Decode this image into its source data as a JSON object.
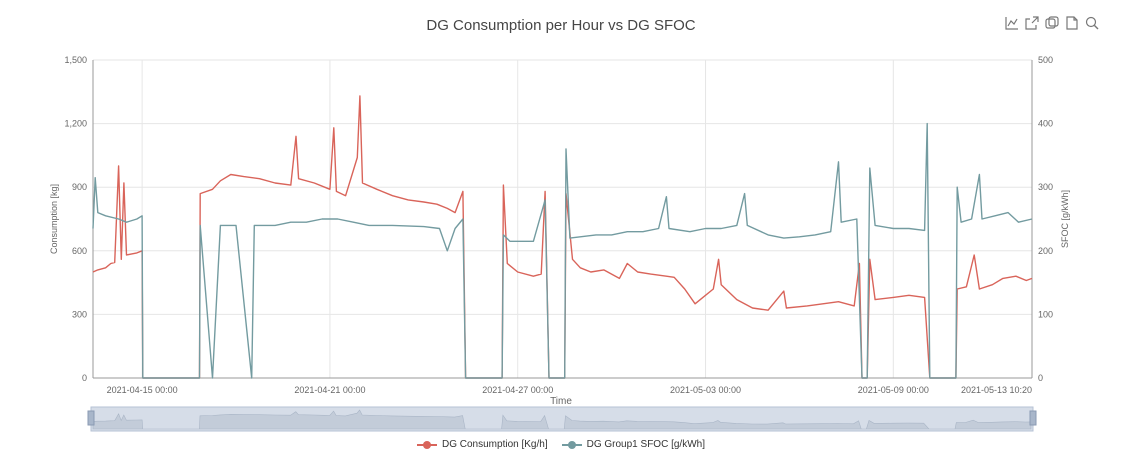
{
  "title": "DG Consumption per Hour vs DG SFOC",
  "toolbox": [
    {
      "name": "line-chart-icon"
    },
    {
      "name": "export-icon"
    },
    {
      "name": "restore-icon"
    },
    {
      "name": "document-icon"
    },
    {
      "name": "zoom-icon"
    }
  ],
  "colors": {
    "consumption": "#d9645a",
    "sfoc": "#739ba0",
    "grid": "#e6e6e6",
    "axis_text": "#666666"
  },
  "chart_data": {
    "type": "line",
    "title": "DG Consumption per Hour vs DG SFOC",
    "xlabel": "Time",
    "ylabel_left": "Consumption [kg]",
    "ylabel_right": "SFOC [g/kWh]",
    "x_range": [
      "2021-04-13 10:20",
      "2021-05-13 10:20"
    ],
    "ylim_left": [
      0,
      1500
    ],
    "ylim_right": [
      0,
      500
    ],
    "y_ticks_left": [
      "0",
      "300",
      "600",
      "900",
      "1,200",
      "1,500"
    ],
    "y_ticks_right": [
      "0",
      "100",
      "200",
      "300",
      "400",
      "500"
    ],
    "x_ticks": [
      {
        "t": "2021-04-15 00:00",
        "label": "2021-04-15 00:00"
      },
      {
        "t": "2021-04-21 00:00",
        "label": "2021-04-21 00:00"
      },
      {
        "t": "2021-04-27 00:00",
        "label": "2021-04-27 00:00"
      },
      {
        "t": "2021-05-03 00:00",
        "label": "2021-05-03 00:00"
      },
      {
        "t": "2021-05-09 00:00",
        "label": "2021-05-09 00:00"
      },
      {
        "t": "2021-05-13 10:20",
        "label": "2021-05-13 10:20"
      }
    ],
    "grid": true,
    "legend_position": "bottom-center",
    "series": [
      {
        "name": "DG Consumption [Kg/h]",
        "axis": "left",
        "points": [
          [
            "2021-04-13 10:20",
            500
          ],
          [
            "2021-04-13 14:00",
            510
          ],
          [
            "2021-04-13 20:00",
            520
          ],
          [
            "2021-04-14 00:00",
            540
          ],
          [
            "2021-04-14 03:00",
            545
          ],
          [
            "2021-04-14 06:00",
            1000
          ],
          [
            "2021-04-14 08:00",
            560
          ],
          [
            "2021-04-14 10:00",
            920
          ],
          [
            "2021-04-14 12:00",
            580
          ],
          [
            "2021-04-14 20:00",
            590
          ],
          [
            "2021-04-15 00:00",
            600
          ],
          [
            "2021-04-15 00:30",
            0
          ],
          [
            "2021-04-16 20:00",
            0
          ],
          [
            "2021-04-16 20:30",
            870
          ],
          [
            "2021-04-17 06:00",
            890
          ],
          [
            "2021-04-17 12:00",
            930
          ],
          [
            "2021-04-17 20:00",
            960
          ],
          [
            "2021-04-18 06:00",
            950
          ],
          [
            "2021-04-18 18:00",
            940
          ],
          [
            "2021-04-19 06:00",
            920
          ],
          [
            "2021-04-19 18:00",
            910
          ],
          [
            "2021-04-19 22:00",
            1140
          ],
          [
            "2021-04-20 00:00",
            940
          ],
          [
            "2021-04-20 12:00",
            920
          ],
          [
            "2021-04-20 20:00",
            900
          ],
          [
            "2021-04-21 00:00",
            890
          ],
          [
            "2021-04-21 03:00",
            1180
          ],
          [
            "2021-04-21 05:00",
            880
          ],
          [
            "2021-04-21 12:00",
            860
          ],
          [
            "2021-04-21 21:00",
            1040
          ],
          [
            "2021-04-21 23:00",
            1330
          ],
          [
            "2021-04-22 01:00",
            920
          ],
          [
            "2021-04-22 12:00",
            890
          ],
          [
            "2021-04-23 00:00",
            860
          ],
          [
            "2021-04-23 12:00",
            840
          ],
          [
            "2021-04-24 00:00",
            830
          ],
          [
            "2021-04-24 10:00",
            820
          ],
          [
            "2021-04-24 18:00",
            800
          ],
          [
            "2021-04-25 00:00",
            780
          ],
          [
            "2021-04-25 06:00",
            880
          ],
          [
            "2021-04-25 08:00",
            0
          ],
          [
            "2021-04-26 12:00",
            0
          ],
          [
            "2021-04-26 13:00",
            910
          ],
          [
            "2021-04-26 16:00",
            540
          ],
          [
            "2021-04-27 00:00",
            500
          ],
          [
            "2021-04-27 12:00",
            480
          ],
          [
            "2021-04-27 18:00",
            490
          ],
          [
            "2021-04-27 21:00",
            880
          ],
          [
            "2021-04-28 00:00",
            0
          ],
          [
            "2021-04-28 12:00",
            0
          ],
          [
            "2021-04-28 13:00",
            870
          ],
          [
            "2021-04-28 18:00",
            560
          ],
          [
            "2021-04-29 00:00",
            520
          ],
          [
            "2021-04-29 08:00",
            500
          ],
          [
            "2021-04-29 18:00",
            510
          ],
          [
            "2021-04-30 06:00",
            470
          ],
          [
            "2021-04-30 12:00",
            540
          ],
          [
            "2021-04-30 20:00",
            500
          ],
          [
            "2021-05-01 06:00",
            490
          ],
          [
            "2021-05-01 18:00",
            480
          ],
          [
            "2021-05-02 00:00",
            475
          ],
          [
            "2021-05-02 08:00",
            420
          ],
          [
            "2021-05-02 16:00",
            350
          ],
          [
            "2021-05-02 22:00",
            380
          ],
          [
            "2021-05-03 06:00",
            420
          ],
          [
            "2021-05-03 10:00",
            560
          ],
          [
            "2021-05-03 12:00",
            440
          ],
          [
            "2021-05-04 00:00",
            370
          ],
          [
            "2021-05-04 12:00",
            330
          ],
          [
            "2021-05-05 00:00",
            320
          ],
          [
            "2021-05-05 12:00",
            410
          ],
          [
            "2021-05-05 14:00",
            330
          ],
          [
            "2021-05-06 06:00",
            340
          ],
          [
            "2021-05-06 18:00",
            350
          ],
          [
            "2021-05-07 06:00",
            360
          ],
          [
            "2021-05-07 18:00",
            340
          ],
          [
            "2021-05-07 22:00",
            540
          ],
          [
            "2021-05-08 00:00",
            0
          ],
          [
            "2021-05-08 04:00",
            0
          ],
          [
            "2021-05-08 06:00",
            560
          ],
          [
            "2021-05-08 10:00",
            370
          ],
          [
            "2021-05-09 00:00",
            380
          ],
          [
            "2021-05-09 12:00",
            390
          ],
          [
            "2021-05-10 00:00",
            380
          ],
          [
            "2021-05-10 04:00",
            0
          ],
          [
            "2021-05-11 00:00",
            0
          ],
          [
            "2021-05-11 01:00",
            420
          ],
          [
            "2021-05-11 08:00",
            430
          ],
          [
            "2021-05-11 14:00",
            580
          ],
          [
            "2021-05-11 18:00",
            420
          ],
          [
            "2021-05-12 04:00",
            440
          ],
          [
            "2021-05-12 12:00",
            470
          ],
          [
            "2021-05-12 22:00",
            480
          ],
          [
            "2021-05-13 06:00",
            460
          ],
          [
            "2021-05-13 10:20",
            470
          ]
        ]
      },
      {
        "name": "DG Group1 SFOC [g/kWh]",
        "axis": "right",
        "points": [
          [
            "2021-04-13 10:20",
            235
          ],
          [
            "2021-04-13 12:00",
            315
          ],
          [
            "2021-04-13 14:00",
            260
          ],
          [
            "2021-04-13 20:00",
            255
          ],
          [
            "2021-04-14 06:00",
            250
          ],
          [
            "2021-04-14 12:00",
            245
          ],
          [
            "2021-04-14 20:00",
            250
          ],
          [
            "2021-04-15 00:00",
            255
          ],
          [
            "2021-04-15 00:30",
            0
          ],
          [
            "2021-04-16 20:00",
            0
          ],
          [
            "2021-04-16 20:30",
            240
          ],
          [
            "2021-04-17 06:00",
            0
          ],
          [
            "2021-04-17 12:00",
            240
          ],
          [
            "2021-04-18 00:00",
            240
          ],
          [
            "2021-04-18 12:00",
            0
          ],
          [
            "2021-04-18 14:00",
            240
          ],
          [
            "2021-04-19 06:00",
            240
          ],
          [
            "2021-04-19 18:00",
            245
          ],
          [
            "2021-04-20 06:00",
            245
          ],
          [
            "2021-04-20 18:00",
            250
          ],
          [
            "2021-04-21 06:00",
            250
          ],
          [
            "2021-04-21 18:00",
            245
          ],
          [
            "2021-04-22 06:00",
            240
          ],
          [
            "2021-04-23 00:00",
            240
          ],
          [
            "2021-04-24 00:00",
            238
          ],
          [
            "2021-04-24 12:00",
            235
          ],
          [
            "2021-04-24 18:00",
            200
          ],
          [
            "2021-04-25 00:00",
            235
          ],
          [
            "2021-04-25 06:00",
            250
          ],
          [
            "2021-04-25 08:00",
            0
          ],
          [
            "2021-04-26 12:00",
            0
          ],
          [
            "2021-04-26 13:00",
            225
          ],
          [
            "2021-04-26 18:00",
            215
          ],
          [
            "2021-04-27 12:00",
            215
          ],
          [
            "2021-04-27 21:00",
            280
          ],
          [
            "2021-04-28 00:00",
            0
          ],
          [
            "2021-04-28 12:00",
            0
          ],
          [
            "2021-04-28 13:00",
            360
          ],
          [
            "2021-04-28 16:00",
            220
          ],
          [
            "2021-04-29 12:00",
            225
          ],
          [
            "2021-04-30 00:00",
            225
          ],
          [
            "2021-04-30 12:00",
            230
          ],
          [
            "2021-05-01 00:00",
            230
          ],
          [
            "2021-05-01 12:00",
            235
          ],
          [
            "2021-05-01 18:00",
            285
          ],
          [
            "2021-05-01 20:00",
            235
          ],
          [
            "2021-05-02 12:00",
            230
          ],
          [
            "2021-05-03 00:00",
            235
          ],
          [
            "2021-05-03 12:00",
            235
          ],
          [
            "2021-05-04 00:00",
            240
          ],
          [
            "2021-05-04 06:00",
            290
          ],
          [
            "2021-05-04 08:00",
            240
          ],
          [
            "2021-05-05 00:00",
            225
          ],
          [
            "2021-05-05 12:00",
            220
          ],
          [
            "2021-05-06 00:00",
            222
          ],
          [
            "2021-05-06 12:00",
            225
          ],
          [
            "2021-05-07 00:00",
            230
          ],
          [
            "2021-05-07 06:00",
            340
          ],
          [
            "2021-05-07 08:00",
            245
          ],
          [
            "2021-05-07 20:00",
            250
          ],
          [
            "2021-05-08 00:00",
            0
          ],
          [
            "2021-05-08 04:00",
            0
          ],
          [
            "2021-05-08 06:00",
            330
          ],
          [
            "2021-05-08 10:00",
            240
          ],
          [
            "2021-05-09 00:00",
            235
          ],
          [
            "2021-05-09 12:00",
            235
          ],
          [
            "2021-05-10 00:00",
            232
          ],
          [
            "2021-05-10 02:00",
            400
          ],
          [
            "2021-05-10 04:00",
            0
          ],
          [
            "2021-05-11 00:00",
            0
          ],
          [
            "2021-05-11 01:00",
            300
          ],
          [
            "2021-05-11 04:00",
            245
          ],
          [
            "2021-05-11 12:00",
            250
          ],
          [
            "2021-05-11 18:00",
            320
          ],
          [
            "2021-05-11 20:00",
            250
          ],
          [
            "2021-05-12 06:00",
            255
          ],
          [
            "2021-05-12 16:00",
            260
          ],
          [
            "2021-05-13 00:00",
            245
          ],
          [
            "2021-05-13 10:20",
            250
          ]
        ]
      }
    ]
  }
}
